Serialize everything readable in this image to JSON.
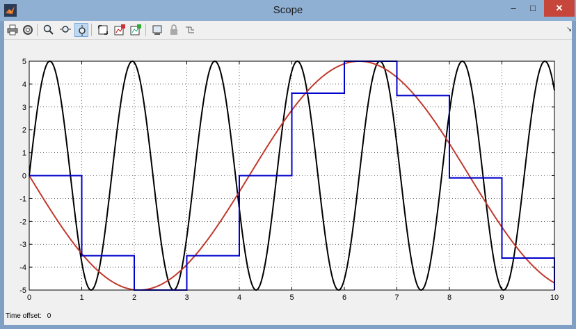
{
  "window": {
    "title": "Scope",
    "minimize": "–",
    "maximize": "□",
    "close": "✕"
  },
  "toolbar": {
    "buttons": [
      "print-icon",
      "parameters-icon",
      "zoom-icon",
      "zoom-x-icon",
      "zoom-y-icon",
      "autoscale-icon",
      "save-axes-icon",
      "restore-axes-icon",
      "floating-scope-icon",
      "lock-icon",
      "signal-selection-icon"
    ],
    "dock_symbol": "↘"
  },
  "footer": {
    "offset_label": "Time offset:",
    "offset_value": "0"
  },
  "chart_data": {
    "type": "line",
    "xlim": [
      0,
      10
    ],
    "ylim": [
      -5,
      5
    ],
    "x_ticks": [
      0,
      1,
      2,
      3,
      4,
      5,
      6,
      7,
      8,
      9,
      10
    ],
    "y_ticks": [
      -5,
      -4,
      -3,
      -2,
      -1,
      0,
      1,
      2,
      3,
      4,
      5
    ],
    "x_tick_labels": [
      "0",
      "1",
      "2",
      "3",
      "4",
      "5",
      "6",
      "7",
      "8",
      "9",
      "10"
    ],
    "y_tick_labels": [
      "-5",
      "-4",
      "-3",
      "-2",
      "-1",
      "0",
      "1",
      "2",
      "3",
      "4",
      "5"
    ],
    "grid": true,
    "series": [
      {
        "kind": "sine",
        "amplitude": 5,
        "angular_frequency": 4,
        "color": "#000000"
      },
      {
        "kind": "sine",
        "amplitude": -5,
        "angular_frequency": 0.75,
        "color": "#c0392b"
      },
      {
        "kind": "step",
        "color": "#0000cc",
        "x": [
          0,
          1,
          2,
          3,
          4,
          5,
          6,
          7,
          8,
          9,
          10
        ],
        "y": [
          0,
          -3.5,
          -5,
          -3.5,
          0,
          3.6,
          5,
          3.5,
          -0.1,
          -3.6,
          -5
        ]
      }
    ]
  }
}
